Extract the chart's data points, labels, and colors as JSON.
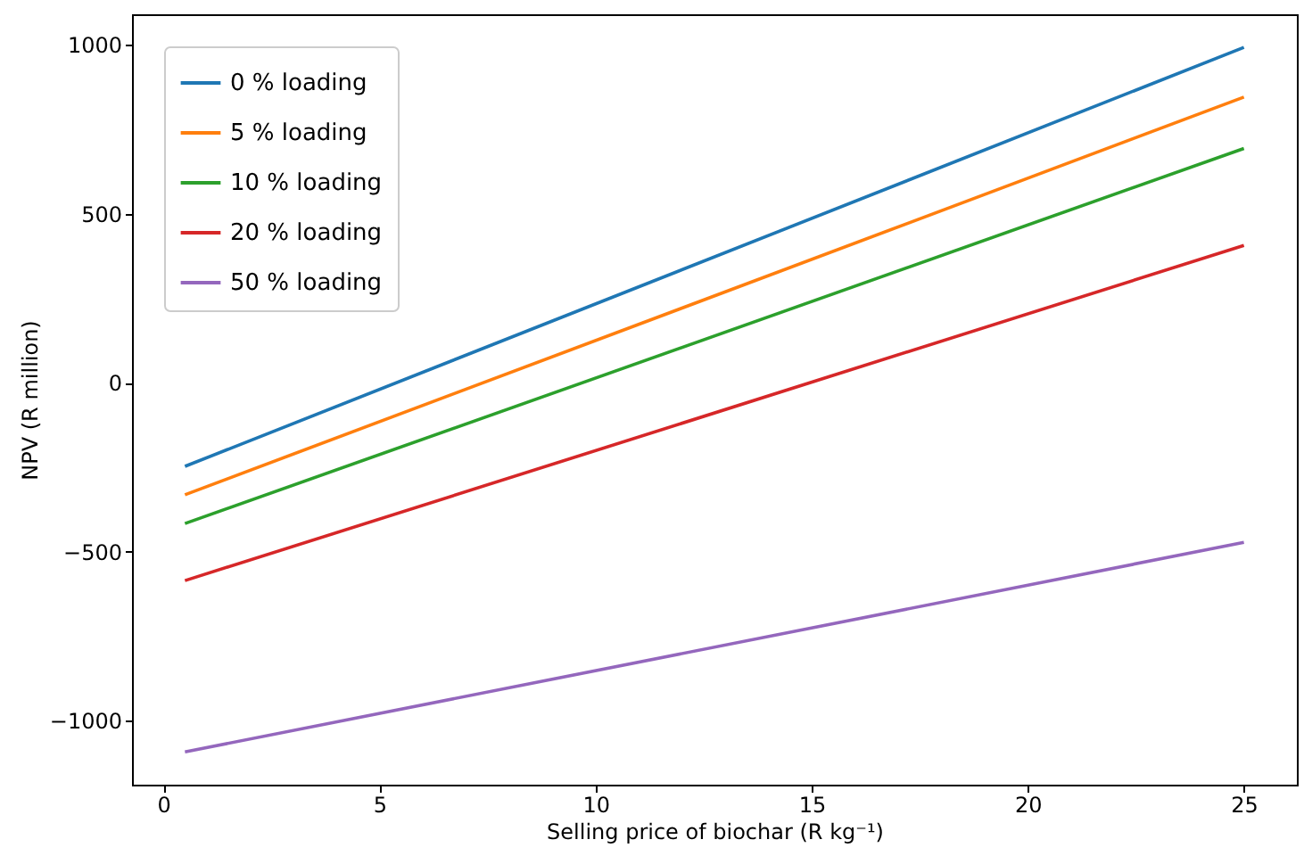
{
  "chart_data": {
    "type": "line",
    "xlabel": "Selling price of biochar (R kg⁻¹)",
    "ylabel": "NPV (R million)",
    "x": [
      0.5,
      25
    ],
    "series": [
      {
        "name": "0 % loading",
        "color": "#1f77b4",
        "values": [
          -248,
          992
        ]
      },
      {
        "name": "5 % loading",
        "color": "#ff7f0e",
        "values": [
          -332,
          845
        ]
      },
      {
        "name": "10 % loading",
        "color": "#2ca02c",
        "values": [
          -417,
          693
        ]
      },
      {
        "name": "20 % loading",
        "color": "#d62728",
        "values": [
          -586,
          406
        ]
      },
      {
        "name": "50 % loading",
        "color": "#9467bd",
        "values": [
          -1093,
          -473
        ]
      }
    ],
    "xlim": [
      -0.725,
      26.225
    ],
    "xticks": [
      0,
      5,
      10,
      15,
      20,
      25
    ],
    "ylim": [
      -1190,
      1090
    ],
    "yticks": [
      -1000,
      -500,
      0,
      500,
      1000
    ],
    "grid": false,
    "legend": "top left",
    "marker": "none",
    "line_style": "solid"
  }
}
